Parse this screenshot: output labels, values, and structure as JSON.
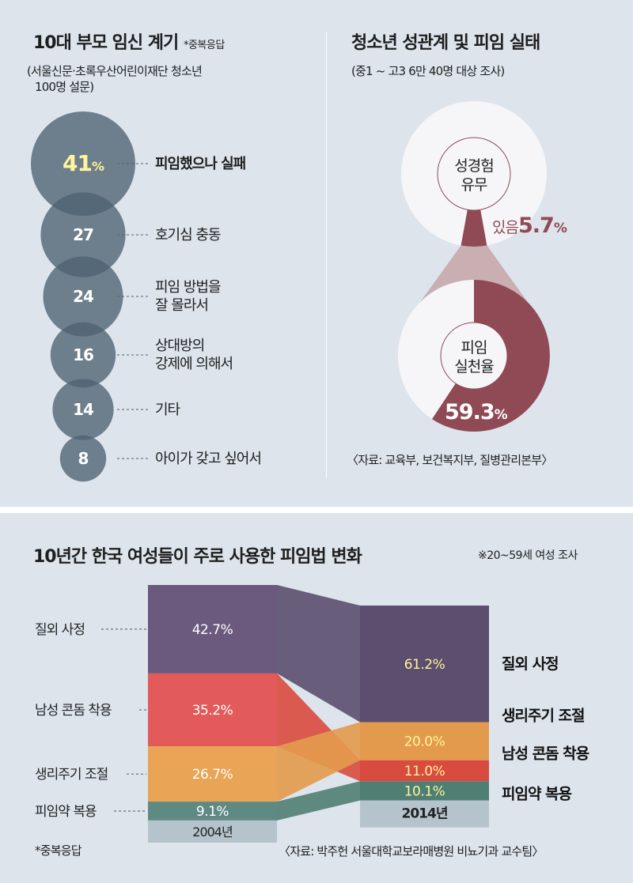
{
  "panel1": {
    "title": "10대 부모 임신 계기",
    "note": "*중복응답",
    "subtitle_line1": "(서울신문·초록우산어린이재단 청소년",
    "subtitle_line2": "100명 설문)"
  },
  "panel2": {
    "title": "청소년 성관계 및 피임 실태",
    "subtitle": "(중1 ~ 고3 6만 40명 대상 조사)",
    "source": "〈자료: 교육부, 보건복지부, 질병관리본부〉"
  },
  "panel3": {
    "title": "10년간 한국 여성들이 주로 사용한 피임법 변화",
    "note": "※20~59세 여성 조사",
    "footnote": "*중복응답",
    "source": "〈자료: 박주헌 서울대학교보라매병원 비뇨기과 교수팀〉"
  },
  "colors": {
    "background": "#dde4ec",
    "bubble": "#4d6172",
    "pink_accent": "#8f4a55",
    "purple": "#6b5a7e",
    "red": "#e35a5a",
    "orange": "#e9a456",
    "teal": "#5f8a84",
    "highlight_yellow": "#fff59a"
  },
  "chart_data": [
    {
      "type": "bubble",
      "title": "10대 부모 임신 계기",
      "categories": [
        "피임했으나 실패",
        "호기심 충동",
        "피임 방법을 잘 몰라서",
        "상대방의 강제에 의해서",
        "기타",
        "아이가 갖고 싶어서"
      ],
      "label_lines": [
        [
          "피임했으나 실패"
        ],
        [
          "호기심 충동"
        ],
        [
          "피임 방법을",
          "잘 몰라서"
        ],
        [
          "상대방의",
          "강제에 의해서"
        ],
        [
          "기타"
        ],
        [
          "아이가 갖고 싶어서"
        ]
      ],
      "values": [
        41,
        27,
        24,
        16,
        14,
        8
      ],
      "value_labels": [
        "41",
        "27",
        "24",
        "16",
        "14",
        "8"
      ],
      "first_unit": "%"
    },
    {
      "type": "pie",
      "title": "청소년 성관계 및 피임 실태",
      "charts": [
        {
          "center_label": [
            "성경험",
            "유무"
          ],
          "slice_label": "있음",
          "value": 5.7,
          "value_label": "5.7",
          "unit": "%"
        },
        {
          "center_label": [
            "피임",
            "실천율"
          ],
          "value": 59.3,
          "value_label": "59.3",
          "unit": "%"
        }
      ]
    },
    {
      "type": "stacked_bar",
      "title": "10년간 한국 여성들이 주로 사용한 피임법 변화",
      "categories": [
        "2004년",
        "2014년"
      ],
      "series": [
        {
          "name": "질외 사정",
          "values": [
            42.7,
            61.2
          ],
          "labels": [
            "42.7%",
            "61.2%"
          ]
        },
        {
          "name": "남성 콘돔 착용",
          "values": [
            35.2,
            11.0
          ],
          "labels": [
            "35.2%",
            "11.0%"
          ]
        },
        {
          "name": "생리주기 조절",
          "values": [
            26.7,
            20.0
          ],
          "labels": [
            "26.7%",
            "20.0%"
          ]
        },
        {
          "name": "피임약 복용",
          "values": [
            9.1,
            10.1
          ],
          "labels": [
            "9.1%",
            "10.1%"
          ]
        }
      ],
      "order_2004": [
        "질외 사정",
        "남성 콘돔 착용",
        "생리주기 조절",
        "피임약 복용"
      ],
      "order_2014": [
        "질외 사정",
        "생리주기 조절",
        "남성 콘돔 착용",
        "피임약 복용"
      ]
    }
  ]
}
